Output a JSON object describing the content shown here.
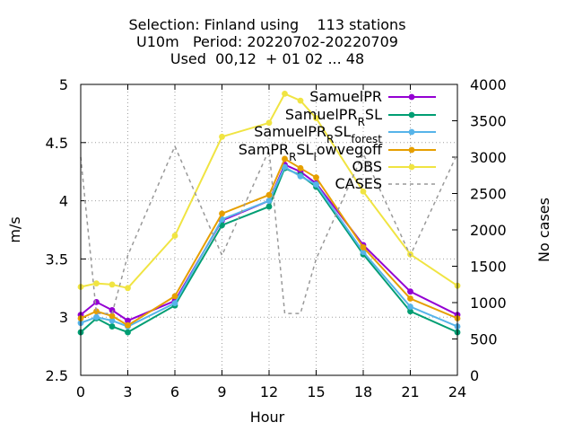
{
  "chart_data": {
    "type": "line",
    "title_lines": [
      "Selection: Finland using    113 stations",
      "U10m   Period: 20220702-20220709",
      "Used  00,12  + 01 02 ... 48"
    ],
    "xlabel": "Hour",
    "ylabel": "m/s",
    "y2label": "No cases",
    "xlim": [
      0,
      24
    ],
    "ylim": [
      2.5,
      5
    ],
    "y2lim": [
      0,
      4000
    ],
    "xticks": [
      "0",
      "3",
      "6",
      "9",
      "12",
      "15",
      "18",
      "21",
      "24"
    ],
    "yticks": [
      "2.5",
      "3",
      "3.5",
      "4",
      "4.5",
      "5"
    ],
    "y2ticks": [
      "0",
      "500",
      "1000",
      "1500",
      "2000",
      "2500",
      "3000",
      "3500",
      "4000"
    ],
    "grid": true,
    "legend_position": "top-right",
    "x": [
      0,
      1,
      2,
      3,
      6,
      9,
      12,
      13,
      14,
      15,
      18,
      21,
      24
    ],
    "series": [
      {
        "name": "SamuelPR",
        "color": "#9400d3",
        "marker": "circle",
        "values": [
          3.02,
          3.13,
          3.06,
          2.97,
          3.14,
          3.83,
          4.0,
          4.31,
          4.25,
          4.15,
          3.62,
          3.22,
          3.02
        ]
      },
      {
        "name": "SamuelPR_RSL",
        "color": "#009e73",
        "marker": "circle",
        "values": [
          2.87,
          2.99,
          2.92,
          2.87,
          3.1,
          3.79,
          3.95,
          4.28,
          4.22,
          4.12,
          3.54,
          3.05,
          2.87
        ]
      },
      {
        "name": "SamuelPR_RSL_forest",
        "color": "#56b4e9",
        "marker": "circle",
        "values": [
          2.95,
          3.0,
          2.97,
          2.92,
          3.12,
          3.84,
          4.0,
          4.29,
          4.21,
          4.14,
          3.56,
          3.09,
          2.92
        ]
      },
      {
        "name": "SamPR_RSL_lowvegoff",
        "color": "#e69f00",
        "marker": "circle",
        "values": [
          2.99,
          3.05,
          3.01,
          2.93,
          3.18,
          3.89,
          4.05,
          4.36,
          4.28,
          4.2,
          3.6,
          3.16,
          2.99
        ]
      },
      {
        "name": "OBS",
        "color": "#f0e442",
        "marker": "circle",
        "values": [
          3.26,
          3.29,
          3.28,
          3.25,
          3.7,
          4.55,
          4.67,
          4.92,
          4.86,
          4.71,
          4.08,
          3.54,
          3.27
        ]
      },
      {
        "name": "CASES",
        "color": "#999999",
        "axis": "y2",
        "dashed": true,
        "x": [
          0,
          1,
          2,
          3,
          6,
          9,
          12,
          13,
          14,
          15,
          18,
          21,
          24
        ],
        "values": [
          3000,
          850,
          850,
          1650,
          3150,
          1650,
          3100,
          850,
          850,
          1600,
          3050,
          1650,
          3050
        ]
      }
    ]
  },
  "legend_labels": {
    "s0": "SamuelPR",
    "s1_main": "SamuelPR",
    "s1_sub": "R",
    "s1_tail": "SL",
    "s2_main": "SamuelPR",
    "s2_sub1": "R",
    "s2_mid": "SL",
    "s2_sub2": "forest",
    "s3_main": "SamPR",
    "s3_sub1": "R",
    "s3_mid": "SL",
    "s3_sub2": "l",
    "s3_tail": "owvegoff",
    "s4": "OBS",
    "s5": "CASES"
  }
}
